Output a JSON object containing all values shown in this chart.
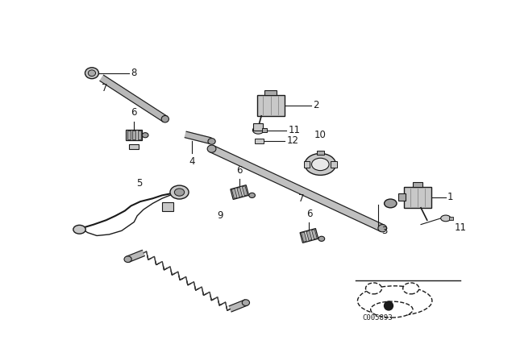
{
  "bg_color": "#ffffff",
  "fig_width": 6.4,
  "fig_height": 4.48,
  "dpi": 100,
  "code": "C005893",
  "dark": "#1a1a1a",
  "gray_fill": "#c8c8c8",
  "light_gray": "#e8e8e8"
}
